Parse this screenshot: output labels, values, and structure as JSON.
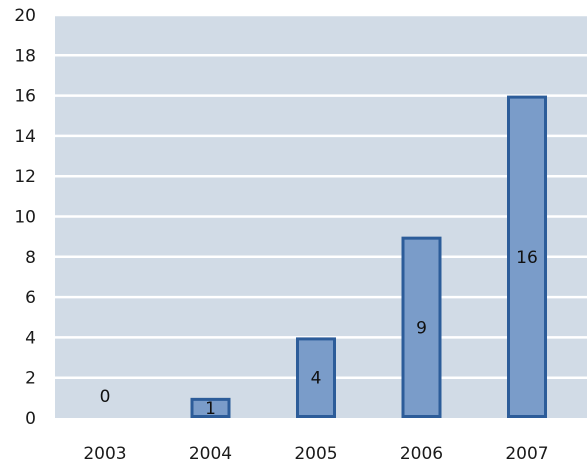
{
  "chart_data": {
    "type": "bar",
    "categories": [
      "2003",
      "2004",
      "2005",
      "2006",
      "2007"
    ],
    "values": [
      0,
      1,
      4,
      9,
      16
    ],
    "data_labels": [
      "0",
      "1",
      "4",
      "9",
      "16"
    ],
    "y_ticks": [
      "0",
      "2",
      "4",
      "6",
      "8",
      "10",
      "12",
      "14",
      "16",
      "18",
      "20"
    ],
    "ylim": [
      0,
      20
    ],
    "title": "",
    "xlabel": "",
    "ylabel": "",
    "grid": true,
    "legend": "none",
    "colors": {
      "plot_background": "#d1dbe6",
      "gridline": "#ffffff",
      "bar_fill": "#7a9cc9",
      "bar_stroke": "#2c5c99"
    }
  }
}
